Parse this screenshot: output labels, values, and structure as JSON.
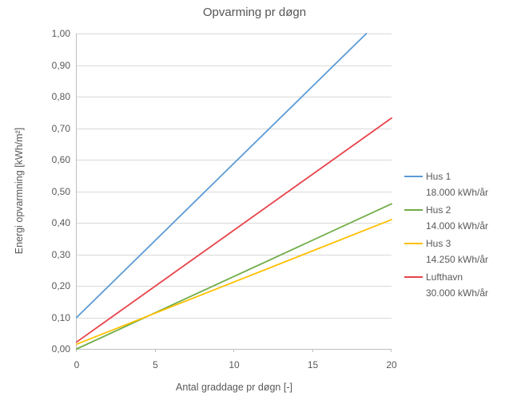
{
  "title": "Opvarming pr døgn",
  "colors": {
    "background": "#FFFFFF",
    "text": "#595959",
    "gridline": "#D9D9D9",
    "axis": "#BFBFBF",
    "series_blue": "#5B9BD5",
    "series_green": "#70AD47",
    "series_yellow": "#FFC000",
    "series_red": "#E8444B"
  },
  "chart_data": {
    "type": "line",
    "title": "Opvarming pr døgn",
    "xlabel": "Antal graddage pr døgn [-]",
    "ylabel": "Energi opvarmning [kWh/m²]",
    "xlim": [
      0,
      20
    ],
    "ylim": [
      0,
      1
    ],
    "grid": "horizontal-only",
    "legend_position": "right",
    "x_ticks": [
      {
        "v": 0,
        "label": "0"
      },
      {
        "v": 5,
        "label": "5"
      },
      {
        "v": 10,
        "label": "10"
      },
      {
        "v": 15,
        "label": "15"
      },
      {
        "v": 20,
        "label": "20"
      }
    ],
    "y_ticks": [
      {
        "v": 0.0,
        "label": "0,00"
      },
      {
        "v": 0.1,
        "label": "0,10"
      },
      {
        "v": 0.2,
        "label": "0,20"
      },
      {
        "v": 0.3,
        "label": "0,30"
      },
      {
        "v": 0.4,
        "label": "0,40"
      },
      {
        "v": 0.5,
        "label": "0,50"
      },
      {
        "v": 0.6,
        "label": "0,60"
      },
      {
        "v": 0.7,
        "label": "0,70"
      },
      {
        "v": 0.8,
        "label": "0,80"
      },
      {
        "v": 0.9,
        "label": "0,90"
      },
      {
        "v": 1.0,
        "label": "1,00"
      }
    ],
    "series": [
      {
        "name": "Hus 1",
        "annual": "18.000 kWh/år",
        "color": "#5B9BD5",
        "points": [
          [
            0,
            0.1
          ],
          [
            18.4,
            1.0
          ]
        ]
      },
      {
        "name": "Hus 2",
        "annual": "14.000 kWh/år",
        "color": "#70AD47",
        "points": [
          [
            0,
            0.0
          ],
          [
            20,
            0.46
          ]
        ]
      },
      {
        "name": "Hus 3",
        "annual": "14.250 kWh/år",
        "color": "#FFC000",
        "points": [
          [
            0,
            0.015
          ],
          [
            20,
            0.41
          ]
        ]
      },
      {
        "name": "Lufthavn",
        "annual": "30.000 kWh/år",
        "color": "#E8444B",
        "points": [
          [
            0,
            0.022
          ],
          [
            20,
            0.732
          ]
        ]
      }
    ]
  }
}
